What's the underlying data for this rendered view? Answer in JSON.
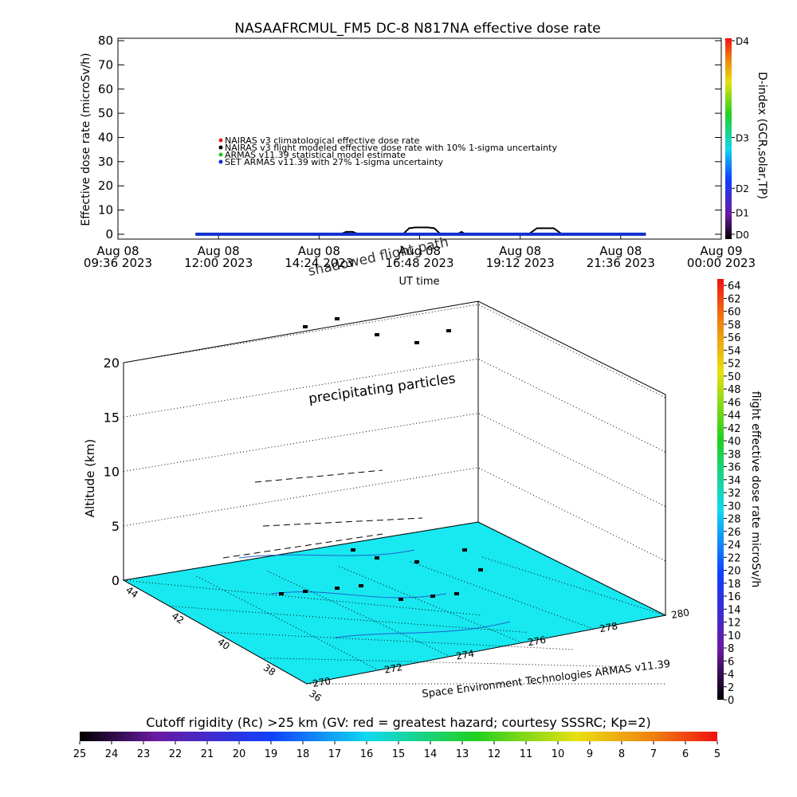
{
  "chart_data": [
    {
      "type": "line",
      "title": "NASAAFRCMUL_FM5 DC-8   N817NA effective dose rate",
      "ylabel": "Effective dose rate (microSv/h)",
      "xlabel": "UT time",
      "xlim": [
        0,
        14.4
      ],
      "xticks": [
        {
          "value": 0,
          "label": [
            "Aug 08",
            "09:36 2023"
          ]
        },
        {
          "value": 2.4,
          "label": [
            "Aug 08",
            "12:00 2023"
          ]
        },
        {
          "value": 4.8,
          "label": [
            "Aug 08",
            "14:24 2023"
          ]
        },
        {
          "value": 7.2,
          "label": [
            "Aug 08",
            "16:48 2023"
          ]
        },
        {
          "value": 9.6,
          "label": [
            "Aug 08",
            "19:12 2023"
          ]
        },
        {
          "value": 12.0,
          "label": [
            "Aug 08",
            "21:36 2023"
          ]
        },
        {
          "value": 14.4,
          "label": [
            "Aug 09",
            "00:00 2023"
          ]
        }
      ],
      "ylim": [
        -2,
        81
      ],
      "yticks": [
        0,
        10,
        20,
        30,
        40,
        50,
        60,
        70,
        80
      ],
      "series": [
        {
          "name": "NAIRAS v3 climatological effective dose rate",
          "color": "#e02020",
          "x": [],
          "values": []
        },
        {
          "name": "NAIRAS v3 flight modeled effective dose rate with 10% 1-sigma uncertainty",
          "color": "#000000",
          "x": [
            1.85,
            5.3,
            5.45,
            5.6,
            5.75,
            6.8,
            6.95,
            7.1,
            7.4,
            7.55,
            7.7,
            8.1,
            8.2,
            8.3,
            9.8,
            10.0,
            10.4,
            10.6,
            12.6
          ],
          "values": [
            0,
            0,
            1,
            1,
            0,
            0,
            2.5,
            2.8,
            2.8,
            2.5,
            0,
            0,
            1,
            0,
            0,
            2.5,
            2.5,
            0,
            0
          ]
        },
        {
          "name": "ARMAS v11.39 statistical model estimate",
          "color": "#20c020",
          "x": [],
          "values": []
        },
        {
          "name": "SET ARMAS v11.39 with 27% 1-sigma uncertainty",
          "color": "#1030d0",
          "x": [
            1.85,
            12.6
          ],
          "values": [
            0,
            0
          ]
        }
      ],
      "colorbar": {
        "label": "D-index (GCR,solar,TP)",
        "ticks": [
          {
            "value": 0,
            "label": "D0"
          },
          {
            "value": 9,
            "label": "D1"
          },
          {
            "value": 19,
            "label": "D2"
          },
          {
            "value": 40,
            "label": "D3"
          },
          {
            "value": 80,
            "label": "D4"
          }
        ]
      }
    },
    {
      "type": "scatter3d",
      "zlabel": "Altitude (km)",
      "zlim": [
        0,
        20
      ],
      "zticks": [
        0,
        5,
        10,
        15,
        20
      ],
      "lat_ticks": [
        44,
        42,
        40,
        38,
        36
      ],
      "lon_ticks": [
        270,
        272,
        274,
        276,
        278,
        280
      ],
      "annotations": [
        "precipitating particles",
        "shadowed flight path"
      ],
      "credit": "Space Environment Technologies ARMAS v11.39",
      "colorbar": {
        "label": "flight effective dose rate microSv/h",
        "lim": [
          0,
          65
        ],
        "ticks": [
          0,
          2,
          4,
          6,
          8,
          10,
          12,
          14,
          16,
          18,
          20,
          22,
          24,
          26,
          28,
          30,
          32,
          34,
          36,
          38,
          40,
          42,
          44,
          46,
          48,
          50,
          52,
          54,
          56,
          58,
          60,
          62,
          64
        ]
      }
    },
    {
      "type": "colorbar",
      "title": "Cutoff rigidity (Rc) >25 km (GV: red = greatest hazard; courtesy SSSRC; Kp=2)",
      "xlim": [
        25,
        5
      ],
      "xticks": [
        25,
        24,
        23,
        22,
        21,
        20,
        19,
        18,
        17,
        16,
        15,
        14,
        13,
        12,
        11,
        10,
        9,
        8,
        7,
        6,
        5
      ]
    }
  ]
}
